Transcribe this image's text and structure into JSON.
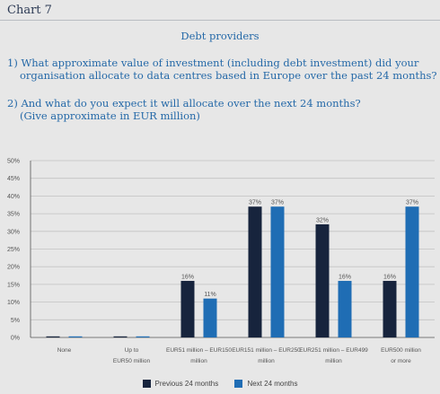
{
  "header": {
    "chart_number": "Chart 7",
    "subtitle": "Debt providers",
    "question1": [
      "1) What approximate value of investment (including debt investment) did your",
      "organisation allocate to data centres based in Europe over the past 24 months?"
    ],
    "question2": [
      "2) And what do you expect it will allocate over the next 24 months?",
      "(Give approximate in EUR million)"
    ]
  },
  "colors": {
    "previous": "#17243d",
    "next": "#1f6db4",
    "grid": "#c2c2c2",
    "axis": "#555555"
  },
  "chart_data": {
    "type": "bar",
    "categories": [
      [
        "None"
      ],
      [
        "Up to",
        "EUR50 million"
      ],
      [
        "EUR51 million – EUR150",
        "million"
      ],
      [
        "EUR151 million – EUR250",
        "million"
      ],
      [
        "EUR251 million – EUR499",
        "million"
      ],
      [
        "EUR500 million",
        "or more"
      ]
    ],
    "series": [
      {
        "name": "Previous 24 months",
        "values": [
          0,
          0,
          16,
          37,
          32,
          16
        ],
        "labels": [
          "",
          "",
          "16%",
          "37%",
          "32%",
          "16%"
        ]
      },
      {
        "name": "Next 24 months",
        "values": [
          0,
          0,
          11,
          37,
          16,
          37
        ],
        "labels": [
          "",
          "",
          "11%",
          "37%",
          "16%",
          "37%"
        ]
      }
    ],
    "yticks": [
      "0%",
      "5%",
      "10%",
      "15%",
      "20%",
      "25%",
      "30%",
      "35%",
      "40%",
      "45%",
      "50%"
    ],
    "ylim": [
      0,
      50
    ],
    "grid": true,
    "legend": "bottom"
  }
}
